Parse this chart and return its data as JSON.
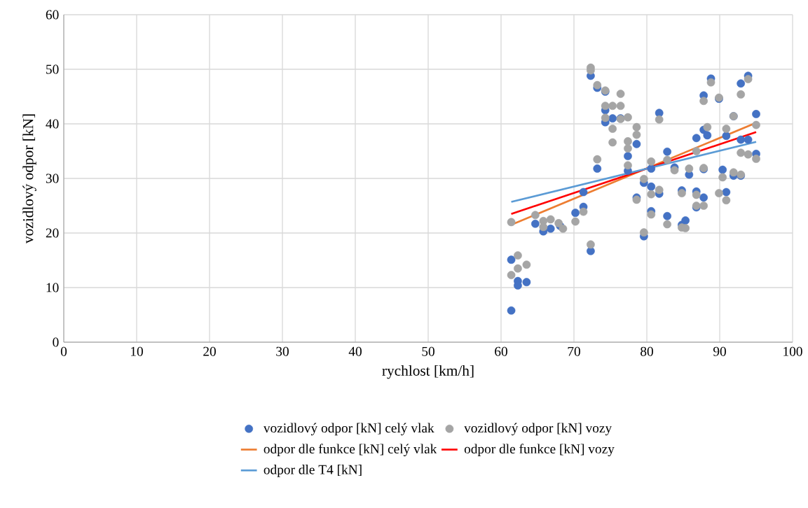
{
  "chart_data": {
    "type": "scatter",
    "xlabel": "rychlost [km/h]",
    "ylabel": "vozidlový odpor [kN]",
    "xlim": [
      0,
      100
    ],
    "ylim": [
      0,
      60
    ],
    "xticks": [
      0,
      10,
      20,
      30,
      40,
      50,
      60,
      70,
      80,
      90,
      100
    ],
    "yticks": [
      0,
      10,
      20,
      30,
      40,
      50,
      60
    ],
    "grid": true,
    "legend": "bottom",
    "series": [
      {
        "name": "vozidlový odpor [kN] celý vlak",
        "type": "scatter",
        "marker": "circle",
        "color": "#4472c4",
        "x": [
          61.4,
          61.4,
          62.3,
          62.3,
          63.5,
          64.7,
          65.8,
          66.8,
          68.1,
          70.2,
          71.3,
          71.3,
          72.3,
          72.3,
          73.2,
          73.2,
          74.3,
          74.3,
          74.3,
          75.3,
          76.4,
          77.4,
          77.4,
          78.6,
          78.6,
          79.6,
          79.6,
          80.6,
          80.6,
          80.6,
          81.7,
          81.7,
          82.8,
          82.8,
          83.8,
          84.8,
          84.8,
          85.3,
          85.8,
          86.8,
          86.8,
          86.8,
          87.8,
          87.8,
          87.8,
          87.8,
          88.3,
          88.8,
          89.9,
          90.4,
          90.9,
          90.9,
          91.9,
          91.9,
          92.9,
          92.9,
          92.9,
          93.9,
          93.9,
          95.0,
          95.0
        ],
        "values": [
          15.1,
          5.8,
          11.2,
          10.4,
          11.0,
          21.7,
          20.3,
          20.8,
          21.3,
          23.7,
          27.5,
          24.8,
          48.8,
          16.7,
          46.6,
          31.8,
          42.5,
          40.3,
          45.9,
          41.0,
          41.0,
          31.4,
          34.1,
          36.3,
          26.5,
          19.4,
          29.2,
          28.5,
          24.0,
          31.8,
          42.0,
          27.2,
          34.9,
          23.1,
          32.0,
          27.8,
          21.5,
          22.3,
          30.7,
          37.4,
          27.6,
          24.7,
          45.2,
          38.9,
          31.7,
          26.5,
          37.9,
          48.3,
          44.6,
          31.6,
          37.8,
          27.5,
          30.5,
          41.4,
          47.4,
          37.1,
          30.5,
          48.8,
          37.1,
          41.8,
          34.5
        ]
      },
      {
        "name": "vozidlový odpor [kN] vozy",
        "type": "scatter",
        "marker": "circle",
        "color": "#a5a5a5",
        "x": [
          61.4,
          61.4,
          62.3,
          62.3,
          63.5,
          64.7,
          65.8,
          65.8,
          66.8,
          67.9,
          68.5,
          70.2,
          71.3,
          72.3,
          72.3,
          72.3,
          73.2,
          73.2,
          74.3,
          74.3,
          74.3,
          75.3,
          75.3,
          75.3,
          76.4,
          76.4,
          76.4,
          77.4,
          77.4,
          77.4,
          77.4,
          78.6,
          78.6,
          78.6,
          79.6,
          79.6,
          80.6,
          80.6,
          80.6,
          81.7,
          81.7,
          82.8,
          82.8,
          83.8,
          84.8,
          84.8,
          85.3,
          85.8,
          86.8,
          86.8,
          86.8,
          87.8,
          87.8,
          87.8,
          88.3,
          88.8,
          89.9,
          89.9,
          90.4,
          90.9,
          90.9,
          91.9,
          91.9,
          92.9,
          92.9,
          92.9,
          93.9,
          93.9,
          95.0,
          95.0
        ],
        "values": [
          22.0,
          12.3,
          15.9,
          13.5,
          14.2,
          23.3,
          22.2,
          21.1,
          22.5,
          21.8,
          20.8,
          22.1,
          23.9,
          50.3,
          49.8,
          17.9,
          47.1,
          33.5,
          46.1,
          43.3,
          41.1,
          43.3,
          39.1,
          36.6,
          45.5,
          43.3,
          40.9,
          41.2,
          36.8,
          35.5,
          32.4,
          39.4,
          38.0,
          26.1,
          29.9,
          20.1,
          33.1,
          27.1,
          23.4,
          40.8,
          27.9,
          33.4,
          21.6,
          31.5,
          27.3,
          21.0,
          20.9,
          31.8,
          35.0,
          27.0,
          25.0,
          44.2,
          31.9,
          25.0,
          39.4,
          47.6,
          44.8,
          27.3,
          30.2,
          39.1,
          26.0,
          41.4,
          31.1,
          45.4,
          34.7,
          30.7,
          48.2,
          34.4,
          39.8,
          33.6
        ]
      },
      {
        "name": "odpor dle funkce [kN] celý vlak",
        "type": "line",
        "marker": "none",
        "color": "#ed7d31",
        "x": [
          61.4,
          95.0
        ],
        "values": [
          21.5,
          40.2
        ]
      },
      {
        "name": "odpor dle funkce [kN] vozy",
        "type": "line",
        "marker": "none",
        "color": "#ff0000",
        "x": [
          61.4,
          95.0
        ],
        "values": [
          23.5,
          38.5
        ]
      },
      {
        "name": "odpor dle T4 [kN]",
        "type": "line",
        "marker": "none",
        "color": "#5b9bd5",
        "x": [
          61.4,
          95.0
        ],
        "values": [
          25.7,
          36.7
        ]
      }
    ]
  }
}
